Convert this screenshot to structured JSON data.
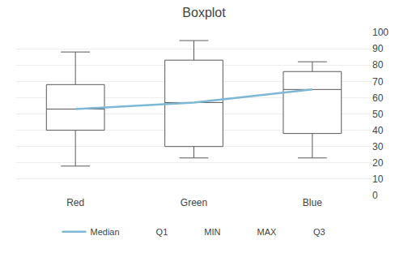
{
  "chart_data": {
    "type": "box",
    "title": "Boxplot",
    "categories": [
      "Red",
      "Green",
      "Blue"
    ],
    "series": [
      {
        "name": "Median",
        "type": "line",
        "color": "#7EB8D4",
        "values": [
          53,
          57,
          65
        ]
      },
      {
        "name": "Q1",
        "type": "box",
        "color": "#595959",
        "values": [
          40,
          30,
          38
        ]
      },
      {
        "name": "MIN",
        "type": "box",
        "color": "#595959",
        "values": [
          18,
          23,
          23
        ]
      },
      {
        "name": "MAX",
        "type": "box",
        "color": "#595959",
        "values": [
          88,
          95,
          82
        ]
      },
      {
        "name": "Q3",
        "type": "box",
        "color": "#595959",
        "values": [
          68,
          83,
          76
        ]
      }
    ],
    "ylim": [
      0,
      100
    ],
    "yticks": [
      0,
      10,
      20,
      30,
      40,
      50,
      60,
      70,
      80,
      90,
      100
    ],
    "grid": true,
    "legend": "bottom"
  }
}
